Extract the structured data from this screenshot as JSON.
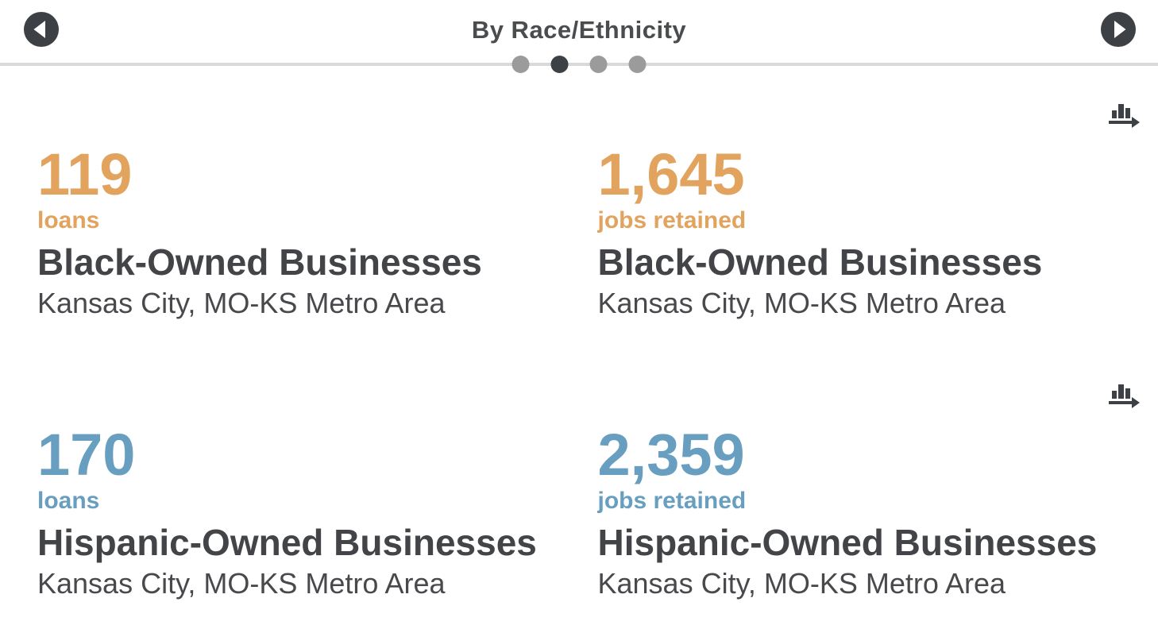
{
  "header": {
    "title": "By Race/Ethnicity",
    "prev_button_label": "previous",
    "next_button_label": "next",
    "carousel": {
      "dot_count": 4,
      "active_index": 1
    }
  },
  "colors": {
    "accent_orange": "#e2a35e",
    "accent_blue": "#689fc0",
    "heading_text": "#4a4c4e",
    "title_text": "#424448",
    "subtitle_text": "#48494c",
    "icon_dark": "#3d4044",
    "dot_inactive": "#9b9b9b",
    "dot_active": "#3d4044",
    "divider": "#d9d9d9"
  },
  "rows": [
    {
      "icon": "bar-chart-arrow-icon",
      "accent": "#e2a35e",
      "cards": [
        {
          "value": "119",
          "unit": "loans",
          "title": "Black-Owned Businesses",
          "subtitle": "Kansas City, MO-KS Metro Area"
        },
        {
          "value": "1,645",
          "unit": "jobs retained",
          "title": "Black-Owned Businesses",
          "subtitle": "Kansas City, MO-KS Metro Area"
        }
      ]
    },
    {
      "icon": "bar-chart-arrow-icon",
      "accent": "#689fc0",
      "cards": [
        {
          "value": "170",
          "unit": "loans",
          "title": "Hispanic-Owned Businesses",
          "subtitle": "Kansas City, MO-KS Metro Area"
        },
        {
          "value": "2,359",
          "unit": "jobs retained",
          "title": "Hispanic-Owned Businesses",
          "subtitle": "Kansas City, MO-KS Metro Area"
        }
      ]
    }
  ]
}
